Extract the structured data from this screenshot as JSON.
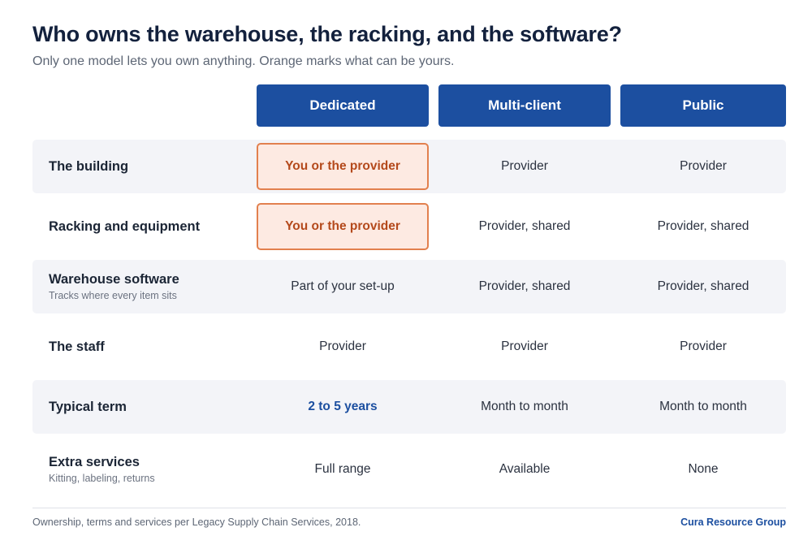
{
  "title": "Who owns the warehouse, the racking, and the software?",
  "subtitle": "Only one model lets you own anything. Orange marks what can be yours.",
  "columns": [
    "Dedicated",
    "Multi-client",
    "Public"
  ],
  "rows": [
    {
      "label": "The building",
      "sublabel": "",
      "values": [
        "You or the provider",
        "Provider",
        "Provider"
      ],
      "highlight": "owned"
    },
    {
      "label": "Racking and equipment",
      "sublabel": "",
      "values": [
        "You or the provider",
        "Provider, shared",
        "Provider, shared"
      ],
      "highlight": "owned"
    },
    {
      "label": "Warehouse software",
      "sublabel": "Tracks where every item sits",
      "values": [
        "Part of your set-up",
        "Provider, shared",
        "Provider, shared"
      ],
      "highlight": "none"
    },
    {
      "label": "The staff",
      "sublabel": "",
      "values": [
        "Provider",
        "Provider",
        "Provider"
      ],
      "highlight": "none"
    },
    {
      "label": "Typical term",
      "sublabel": "",
      "values": [
        "2 to 5 years",
        "Month to month",
        "Month to month"
      ],
      "highlight": "emphasis"
    },
    {
      "label": "Extra services",
      "sublabel": "Kitting, labeling, returns",
      "values": [
        "Full range",
        "Available",
        "None"
      ],
      "highlight": "none"
    }
  ],
  "footnote": "Ownership, terms and services per Legacy Supply Chain Services, 2018.",
  "brand": "Cura Resource Group",
  "colors": {
    "header": "#1c4fa0",
    "owned_fill": "#fdeae2",
    "owned_border": "#e2804e",
    "owned_text": "#b4491b",
    "row_shade": "#f3f4f8"
  }
}
